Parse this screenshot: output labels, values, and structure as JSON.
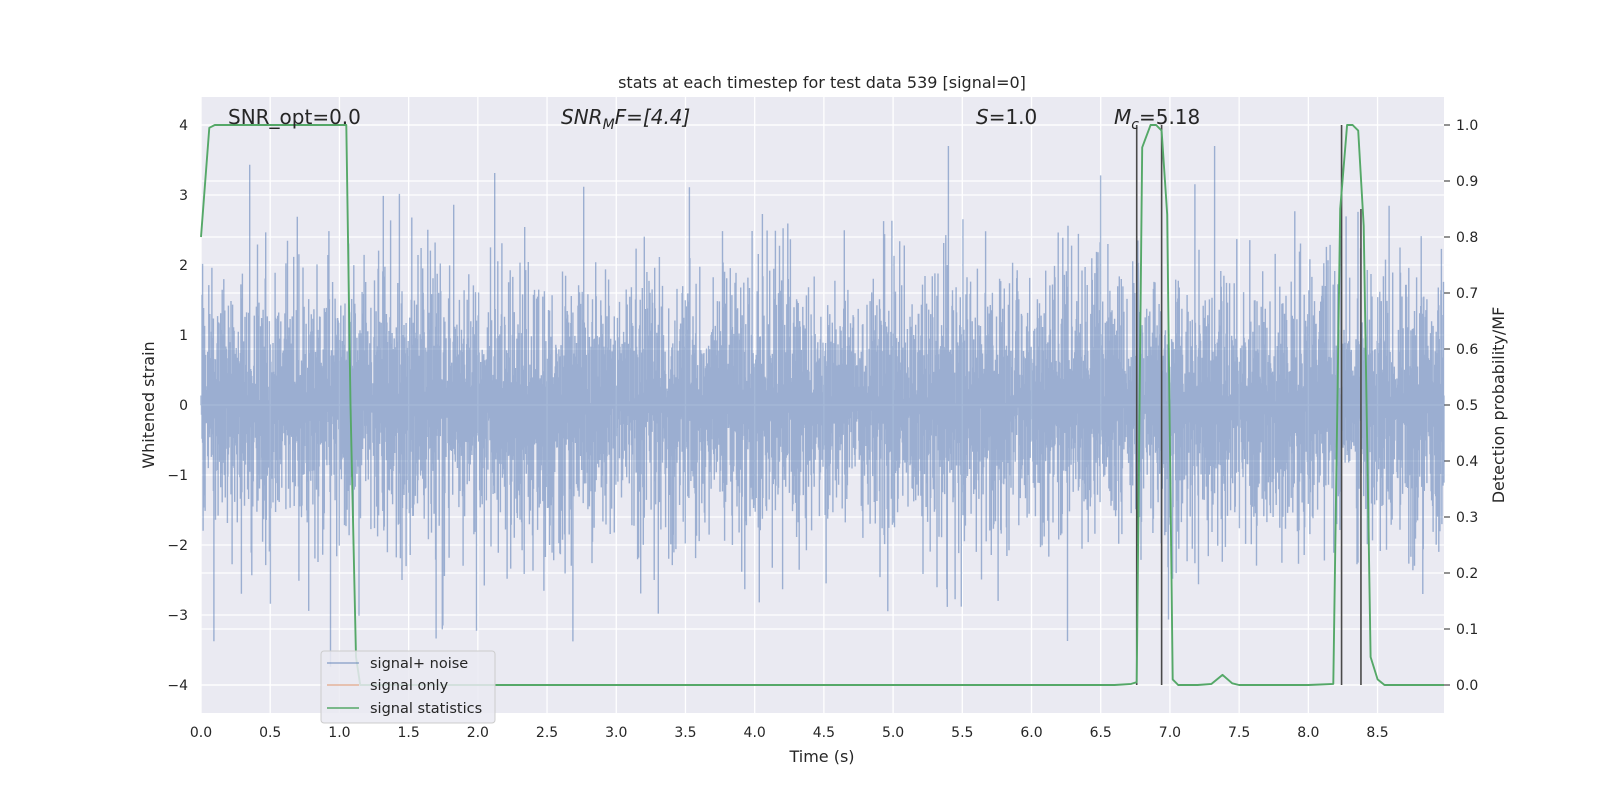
{
  "chart_data": {
    "type": "line",
    "title": "stats at each timestep for test data 539 [signal=0]",
    "xlabel": "Time (s)",
    "ylabel_left": "Whitened strain",
    "ylabel_right": "Detection probability/MF",
    "xlim": [
      0.0,
      8.98
    ],
    "ylim_left": [
      -4.4,
      4.4
    ],
    "ylim_right": [
      -0.05,
      1.05
    ],
    "grid": true,
    "legend_position": "lower-left",
    "x_ticks": [
      "0.0",
      "0.5",
      "1.0",
      "1.5",
      "2.0",
      "2.5",
      "3.0",
      "3.5",
      "4.0",
      "4.5",
      "5.0",
      "5.5",
      "6.0",
      "6.5",
      "7.0",
      "7.5",
      "8.0",
      "8.5"
    ],
    "y_left_ticks": [
      "4",
      "3",
      "2",
      "1",
      "0",
      "−1",
      "−2",
      "−3",
      "−4"
    ],
    "y_right_ticks": [
      "1.0",
      "0.9",
      "0.8",
      "0.7",
      "0.6",
      "0.5",
      "0.4",
      "0.3",
      "0.2",
      "0.1",
      "0.0"
    ],
    "annotations": {
      "snr_opt": "SNR_opt=0.0",
      "snr_mf_main": "SNR",
      "snr_mf_sub": "M",
      "snr_mf_tail": "F=[4.4]",
      "s_main": "S",
      "s_tail": "=1.0",
      "mc_main": "M",
      "mc_sub": "c",
      "mc_tail": "=5.18"
    },
    "series": [
      {
        "name": "signal+ noise",
        "color": "#4c72b0",
        "description_type": "noise",
        "envelope_abs": 1.6,
        "max_abs": 3.7,
        "x_range": [
          0.0,
          8.98
        ]
      },
      {
        "name": "signal only",
        "color": "#dd8452",
        "x": [],
        "y": []
      },
      {
        "name": "signal statistics",
        "color": "#55a868",
        "axis": "right",
        "x": [
          0.0,
          0.06,
          0.1,
          0.2,
          0.4,
          0.6,
          0.8,
          1.0,
          1.05,
          1.08,
          1.12,
          1.15,
          1.3,
          2.0,
          3.0,
          4.0,
          5.0,
          6.0,
          6.6,
          6.72,
          6.76,
          6.8,
          6.86,
          6.9,
          6.94,
          6.98,
          7.02,
          7.06,
          7.1,
          7.2,
          7.3,
          7.38,
          7.45,
          7.5,
          7.6,
          8.0,
          8.18,
          8.23,
          8.28,
          8.32,
          8.36,
          8.4,
          8.45,
          8.5,
          8.55,
          8.6,
          8.98
        ],
        "y": [
          0.8,
          0.995,
          1.0,
          1.0,
          1.0,
          1.0,
          1.0,
          1.0,
          1.0,
          0.5,
          0.05,
          0.0,
          0.0,
          0.0,
          0.0,
          0.0,
          0.0,
          0.0,
          0.0,
          0.002,
          0.005,
          0.96,
          1.0,
          1.0,
          0.99,
          0.84,
          0.01,
          0.0,
          0.0,
          0.0,
          0.002,
          0.018,
          0.003,
          0.0,
          0.0,
          0.0,
          0.002,
          0.85,
          1.0,
          1.0,
          0.99,
          0.82,
          0.05,
          0.01,
          0.0,
          0.0,
          0.0
        ]
      }
    ],
    "event_lines": [
      {
        "x": 6.76,
        "y_top": 1.0,
        "y_bottom": 0.0
      },
      {
        "x": 6.94,
        "y_top": 1.0,
        "y_bottom": 0.0
      },
      {
        "x": 8.24,
        "y_top": 1.0,
        "y_bottom": 0.0
      },
      {
        "x": 8.38,
        "y_top": 0.85,
        "y_bottom": 0.0
      }
    ],
    "legend": [
      {
        "label": "signal+ noise",
        "color": "#4c72b0"
      },
      {
        "label": "signal only",
        "color": "#dd8452"
      },
      {
        "label": "signal statistics",
        "color": "#55a868"
      }
    ],
    "colors": {
      "axes_bg": "#eaeaf2",
      "grid": "#ffffff",
      "noise": "#4c72b0",
      "event_line": "#4a4a4a"
    }
  }
}
